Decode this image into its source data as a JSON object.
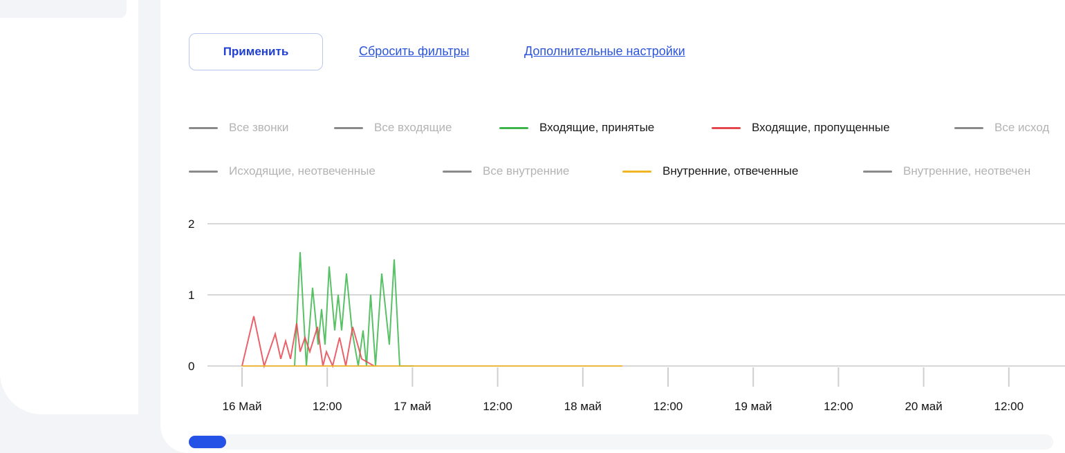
{
  "filters": {
    "apply_label": "Применить",
    "reset_label": "Сбросить фильтры",
    "advanced_label": "Дополнительные настройки"
  },
  "colors": {
    "accent": "#1f3fd1",
    "link": "#2b54d8",
    "scroll_thumb": "#2451e6",
    "legend_inactive": "#8a8a8a",
    "grid": "#d7d7d7"
  },
  "chart_data": {
    "type": "line",
    "ylim": [
      0,
      2
    ],
    "y_ticks": [
      "0",
      "1",
      "2"
    ],
    "grid": true,
    "legend_position": "top",
    "x_tick_labels": [
      "16 Май",
      "12:00",
      "17 май",
      "12:00",
      "18 май",
      "12:00",
      "19 май",
      "12:00",
      "20 май",
      "12:00"
    ],
    "legend": [
      {
        "name": "Все звонки",
        "color": "#8a8a8a",
        "active": false
      },
      {
        "name": "Все входящие",
        "color": "#8a8a8a",
        "active": false
      },
      {
        "name": "Входящие, принятые",
        "color": "#3bb54a",
        "active": true
      },
      {
        "name": "Входящие, пропущенные",
        "color": "#e5474f",
        "active": true
      },
      {
        "name": "Все исход",
        "color": "#8a8a8a",
        "active": false
      },
      {
        "name": "Исходящие, неотвеченные",
        "color": "#8a8a8a",
        "active": false
      },
      {
        "name": "Все внутренние",
        "color": "#8a8a8a",
        "active": false
      },
      {
        "name": "Внутренние, отвеченные",
        "color": "#f0b323",
        "active": true
      },
      {
        "name": "Внутренние, неотвечен",
        "color": "#8a8a8a",
        "active": false
      }
    ],
    "series": [
      {
        "name": "Входящие, принятые",
        "color": "#3bb54a",
        "x": [
          7.6,
          8.4,
          9.3,
          10.2,
          11.0,
          11.5,
          12.0,
          12.6,
          13.4,
          13.9,
          14.4,
          15.1,
          15.9,
          16.8,
          17.5,
          18.0,
          18.6,
          19.3,
          20.2,
          21.3,
          22.0,
          22.8,
          23.9,
          24.8
        ],
        "values": [
          0,
          1.6,
          0,
          1.1,
          0.3,
          0.8,
          0.3,
          1.4,
          0.5,
          1.0,
          0.5,
          1.3,
          0.5,
          0,
          0.5,
          0,
          1.0,
          0,
          1.3,
          0.3,
          1.5,
          0,
          0,
          0
        ]
      },
      {
        "name": "Входящие, пропущенные",
        "color": "#e5474f",
        "x": [
          0,
          1.7,
          3.2,
          4.8,
          5.6,
          6.3,
          7.0,
          7.9,
          8.4,
          9.1,
          9.8,
          10.9,
          11.7,
          12.2,
          13.1,
          14.1,
          15.0,
          16.0,
          17.3,
          19.1
        ],
        "values": [
          0,
          0.7,
          0,
          0.45,
          0.1,
          0.35,
          0.1,
          0.6,
          0.2,
          0.4,
          0.2,
          0.55,
          0,
          0.2,
          0,
          0.4,
          0,
          0.55,
          0.1,
          0
        ]
      },
      {
        "name": "Внутренние, отвеченные",
        "color": "#f0b323",
        "x": [
          0,
          55
        ],
        "values": [
          0,
          0
        ]
      }
    ]
  }
}
